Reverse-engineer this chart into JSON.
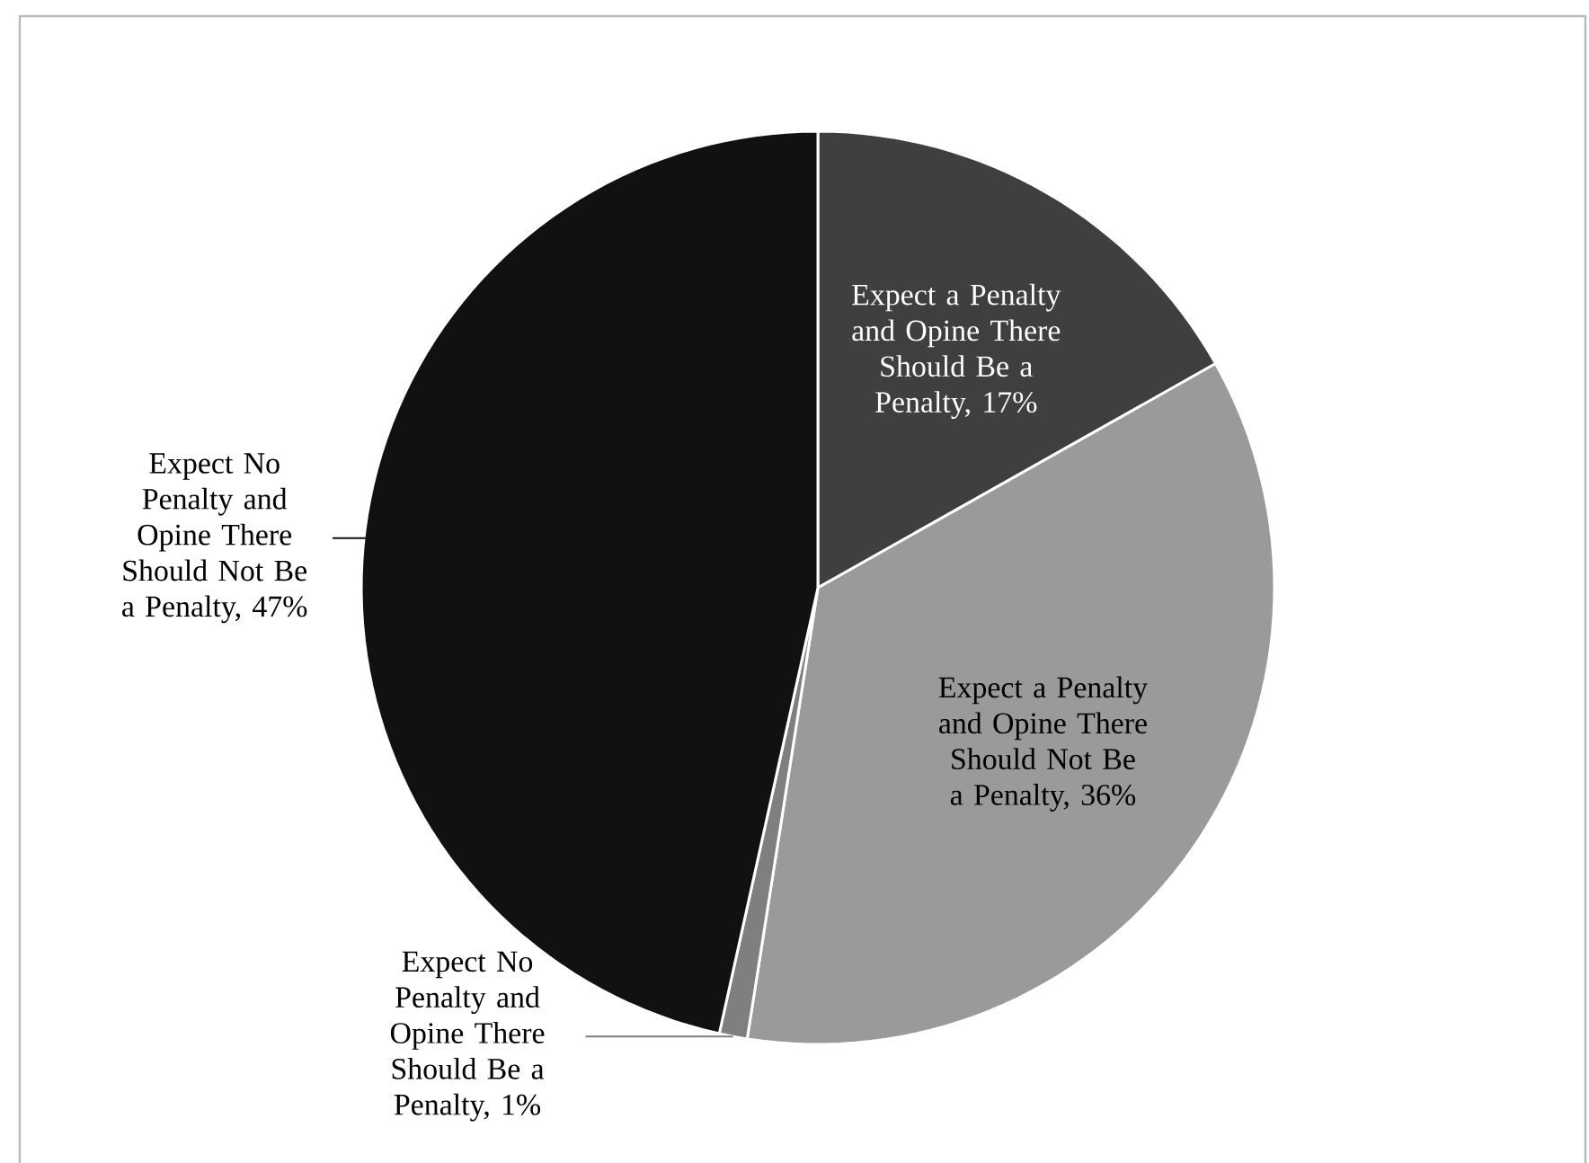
{
  "chart_data": {
    "type": "pie",
    "categories": [
      "Expect a Penalty and Opine There Should Be a Penalty, 17%",
      "Expect a Penalty and Opine There Should Not Be a Penalty, 36%",
      "Expect No Penalty and Opine There Should Be a Penalty, 1%",
      "Expect No Penalty and Opine There Should Not Be a Penalty, 47%"
    ],
    "values": [
      17,
      36,
      1,
      47
    ],
    "colors": [
      "#3f3f3f",
      "#9a9a9a",
      "#7f7f7f",
      "#111111"
    ]
  }
}
